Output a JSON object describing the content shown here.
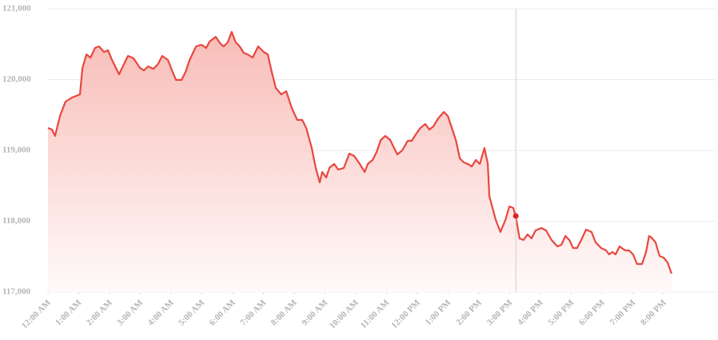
{
  "chart_data": {
    "type": "area",
    "color": "#e8473f",
    "fill_top": "#f8bcb7",
    "fill_bottom": "#fffafa",
    "grid": true,
    "xlim": [
      0,
      21.69
    ],
    "ylim": [
      117000,
      121000
    ],
    "yticks": [
      {
        "value": 117000,
        "label": "117,000"
      },
      {
        "value": 118000,
        "label": "118,000"
      },
      {
        "value": 119000,
        "label": "119,000"
      },
      {
        "value": 120000,
        "label": "120,000"
      },
      {
        "value": 121000,
        "label": "121,000"
      }
    ],
    "xticks": [
      {
        "value": 0,
        "label": "12:00 AM"
      },
      {
        "value": 1,
        "label": "1:00 AM"
      },
      {
        "value": 2,
        "label": "2:00 AM"
      },
      {
        "value": 3,
        "label": "3:00 AM"
      },
      {
        "value": 4,
        "label": "4:00 AM"
      },
      {
        "value": 5,
        "label": "5:00 AM"
      },
      {
        "value": 6,
        "label": "6:00 AM"
      },
      {
        "value": 7,
        "label": "7:00 AM"
      },
      {
        "value": 8,
        "label": "8:00 AM"
      },
      {
        "value": 9,
        "label": "9:00 AM"
      },
      {
        "value": 10,
        "label": "10:00 AM"
      },
      {
        "value": 11,
        "label": "11:00 AM"
      },
      {
        "value": 12,
        "label": "12:00 PM"
      },
      {
        "value": 13,
        "label": "1:00 PM"
      },
      {
        "value": 14,
        "label": "2:00 PM"
      },
      {
        "value": 15,
        "label": "3:00 PM"
      },
      {
        "value": 16,
        "label": "4:00 PM"
      },
      {
        "value": 17,
        "label": "5:00 PM"
      },
      {
        "value": 18,
        "label": "6:00 PM"
      },
      {
        "value": 19,
        "label": "7:00 PM"
      },
      {
        "value": 20,
        "label": "8:00 PM"
      }
    ],
    "x": [
      0.0,
      0.13,
      0.23,
      0.39,
      0.57,
      0.78,
      1.04,
      1.12,
      1.25,
      1.38,
      1.53,
      1.66,
      1.82,
      1.95,
      2.08,
      2.21,
      2.31,
      2.47,
      2.6,
      2.78,
      2.99,
      3.12,
      3.25,
      3.43,
      3.58,
      3.71,
      3.9,
      4.03,
      4.16,
      4.34,
      4.47,
      4.6,
      4.81,
      4.99,
      5.14,
      5.25,
      5.45,
      5.61,
      5.71,
      5.84,
      5.97,
      6.1,
      6.23,
      6.36,
      6.49,
      6.65,
      6.83,
      7.01,
      7.14,
      7.27,
      7.4,
      7.58,
      7.74,
      7.92,
      8.1,
      8.26,
      8.39,
      8.57,
      8.7,
      8.83,
      8.91,
      9.04,
      9.14,
      9.3,
      9.43,
      9.61,
      9.79,
      9.95,
      10.13,
      10.29,
      10.39,
      10.55,
      10.68,
      10.81,
      10.96,
      11.12,
      11.22,
      11.35,
      11.51,
      11.69,
      11.82,
      11.95,
      12.1,
      12.26,
      12.39,
      12.52,
      12.68,
      12.86,
      12.99,
      13.12,
      13.25,
      13.38,
      13.51,
      13.64,
      13.77,
      13.9,
      14.03,
      14.18,
      14.29,
      14.34,
      14.55,
      14.7,
      14.86,
      14.99,
      15.12,
      15.22,
      15.32,
      15.45,
      15.58,
      15.71,
      15.84,
      16.03,
      16.18,
      16.36,
      16.55,
      16.68,
      16.81,
      16.94,
      17.06,
      17.19,
      17.35,
      17.48,
      17.66,
      17.79,
      17.97,
      18.13,
      18.23,
      18.34,
      18.44,
      18.57,
      18.75,
      18.88,
      19.01,
      19.14,
      19.3,
      19.43,
      19.53,
      19.61,
      19.74,
      19.87,
      20.0,
      20.13,
      20.26
    ],
    "values": [
      119317,
      119294,
      119204,
      119486,
      119689,
      119746,
      119791,
      120164,
      120356,
      120311,
      120447,
      120469,
      120390,
      120413,
      120277,
      120164,
      120074,
      120221,
      120334,
      120300,
      120164,
      120130,
      120187,
      120153,
      120221,
      120334,
      120277,
      120130,
      119995,
      119995,
      120108,
      120277,
      120469,
      120492,
      120447,
      120537,
      120605,
      120503,
      120469,
      120526,
      120673,
      120526,
      120469,
      120379,
      120356,
      120311,
      120469,
      120390,
      120356,
      120108,
      119882,
      119791,
      119836,
      119599,
      119430,
      119430,
      119317,
      119034,
      118752,
      118548,
      118695,
      118616,
      118752,
      118808,
      118729,
      118752,
      118955,
      118921,
      118808,
      118695,
      118808,
      118865,
      118978,
      119147,
      119204,
      119147,
      119057,
      118944,
      119000,
      119136,
      119136,
      119226,
      119317,
      119373,
      119294,
      119339,
      119452,
      119543,
      119486,
      119317,
      119147,
      118887,
      118831,
      118808,
      118774,
      118865,
      118808,
      119034,
      118808,
      118356,
      118017,
      117848,
      118017,
      118209,
      118187,
      118017,
      117757,
      117735,
      117814,
      117757,
      117870,
      117904,
      117870,
      117735,
      117644,
      117667,
      117791,
      117735,
      117622,
      117622,
      117757,
      117881,
      117848,
      117701,
      117622,
      117588,
      117531,
      117565,
      117531,
      117644,
      117588,
      117588,
      117531,
      117396,
      117396,
      117565,
      117791,
      117768,
      117701,
      117509,
      117486,
      117418,
      117260
    ],
    "hover": {
      "x": 15.2,
      "value": 118074,
      "color": "#e02020"
    }
  }
}
